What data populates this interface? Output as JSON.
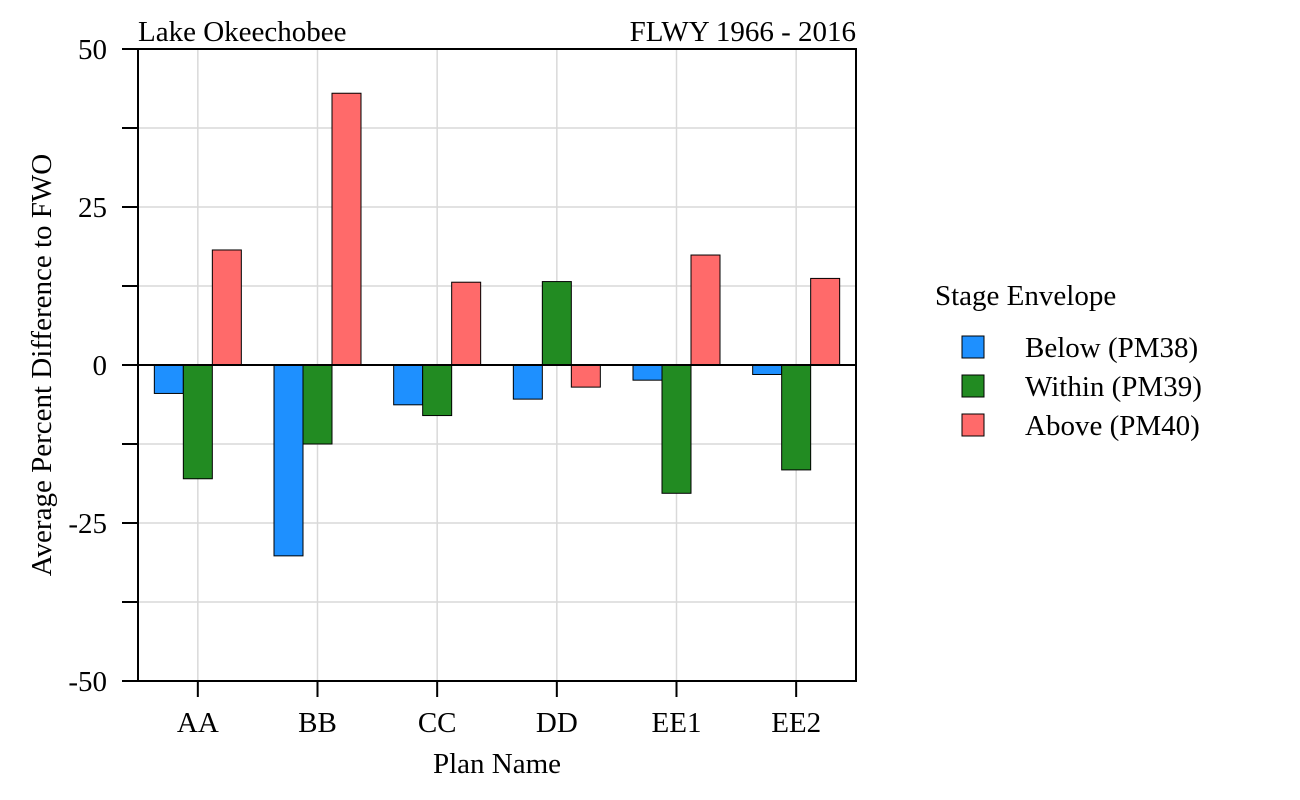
{
  "chart_data": {
    "type": "bar",
    "title_left": "Lake Okeechobee",
    "title_right": "FLWY 1966 - 2016",
    "xlabel": "Plan Name",
    "ylabel": "Average Percent Difference to FWO",
    "ylim": [
      -50,
      50
    ],
    "yticks": [
      -50,
      -25,
      0,
      25,
      50
    ],
    "grid": true,
    "legend_title": "Stage Envelope",
    "legend_position": "right",
    "categories": [
      "AA",
      "BB",
      "CC",
      "DD",
      "EE1",
      "EE2"
    ],
    "series": [
      {
        "name": "Below (PM38)",
        "color": "#1E90FF",
        "values": [
          -4.5,
          -30.2,
          -6.3,
          -5.4,
          -2.4,
          -1.5
        ]
      },
      {
        "name": "Within (PM39)",
        "color": "#228B22",
        "values": [
          -18.0,
          -12.5,
          -8.0,
          13.2,
          -20.3,
          -16.6
        ]
      },
      {
        "name": "Above (PM40)",
        "color": "#FF6A6A",
        "values": [
          18.2,
          43.0,
          13.1,
          -3.5,
          17.4,
          13.7
        ]
      }
    ]
  }
}
